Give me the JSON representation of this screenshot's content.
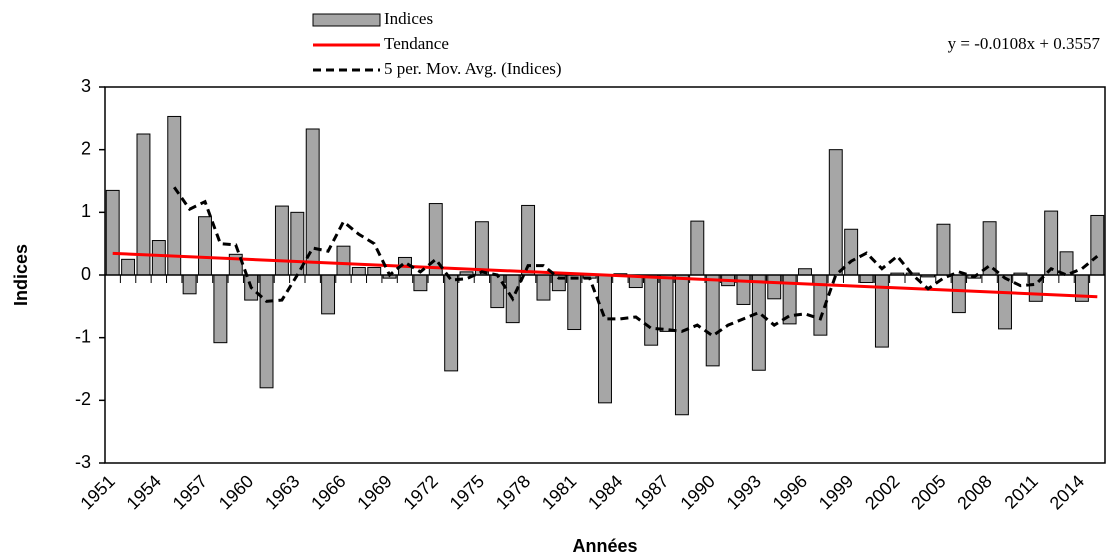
{
  "chart_data": {
    "type": "bar",
    "xlabel": "Années",
    "ylabel": "Indices",
    "categories": [
      "1951",
      null,
      null,
      "1954",
      null,
      null,
      "1957",
      null,
      null,
      "1960",
      null,
      null,
      "1963",
      null,
      null,
      "1966",
      null,
      null,
      "1969",
      null,
      null,
      "1972",
      null,
      null,
      "1975",
      null,
      null,
      "1978",
      null,
      null,
      "1981",
      null,
      null,
      "1984",
      null,
      null,
      "1987",
      null,
      null,
      "1990",
      null,
      null,
      "1993",
      null,
      null,
      "1996",
      null,
      null,
      "1999",
      null,
      null,
      "2002",
      null,
      null,
      "2005",
      null,
      null,
      "2008",
      null,
      null,
      "2011",
      null,
      null,
      "2014",
      null
    ],
    "series": [
      {
        "name": "Indices",
        "color": "#a6a6a6",
        "values": [
          1.35,
          0.25,
          2.25,
          0.55,
          2.53,
          -0.3,
          0.93,
          -1.08,
          0.33,
          -0.4,
          -1.8,
          1.1,
          1.0,
          2.33,
          -0.62,
          0.46,
          0.12,
          0.12,
          -0.05,
          0.28,
          -0.25,
          1.14,
          -1.53,
          0.05,
          0.85,
          -0.52,
          -0.76,
          1.11,
          -0.4,
          -0.25,
          -0.87,
          -0.05,
          -2.04,
          0.02,
          -0.2,
          -1.12,
          -0.9,
          -2.23,
          0.86,
          -1.45,
          -0.17,
          -0.47,
          -1.52,
          -0.38,
          -0.78,
          0.1,
          -0.96,
          2.0,
          0.73,
          -0.12,
          -1.15,
          0.03,
          0.03,
          -0.03,
          0.81,
          -0.6,
          -0.05,
          0.85,
          -0.86,
          0.03,
          -0.42,
          1.02,
          0.37,
          -0.42,
          0.95
        ]
      }
    ],
    "trend": {
      "name": "Tendance",
      "color": "#ff0000",
      "slope": -0.0108,
      "intercept": 0.3557,
      "label": "y = -0.0108x + 0.3557"
    },
    "moving_average": {
      "name": "5 per. Mov. Avg. (Indices)",
      "color": "#000000",
      "values": [
        null,
        null,
        null,
        null,
        1.4,
        1.05,
        1.17,
        0.5,
        0.48,
        -0.2,
        -0.42,
        -0.4,
        0.0,
        0.43,
        0.38,
        0.85,
        0.65,
        0.5,
        0.0,
        0.2,
        0.05,
        0.25,
        -0.08,
        -0.06,
        0.05,
        0.0,
        -0.38,
        0.15,
        0.15,
        -0.05,
        -0.05,
        -0.05,
        -0.7,
        -0.7,
        -0.67,
        -0.85,
        -0.87,
        -0.9,
        -0.8,
        -0.97,
        -0.8,
        -0.7,
        -0.6,
        -0.8,
        -0.65,
        -0.62,
        -0.7,
        0.0,
        0.22,
        0.35,
        0.1,
        0.3,
        0.0,
        -0.22,
        -0.05,
        0.05,
        -0.03,
        0.15,
        -0.05,
        -0.17,
        -0.15,
        0.1,
        0.0,
        0.1,
        0.3
      ]
    },
    "ylim": [
      -3,
      3
    ],
    "yticks": [
      -3,
      -2,
      -1,
      0,
      1,
      2,
      3
    ]
  }
}
